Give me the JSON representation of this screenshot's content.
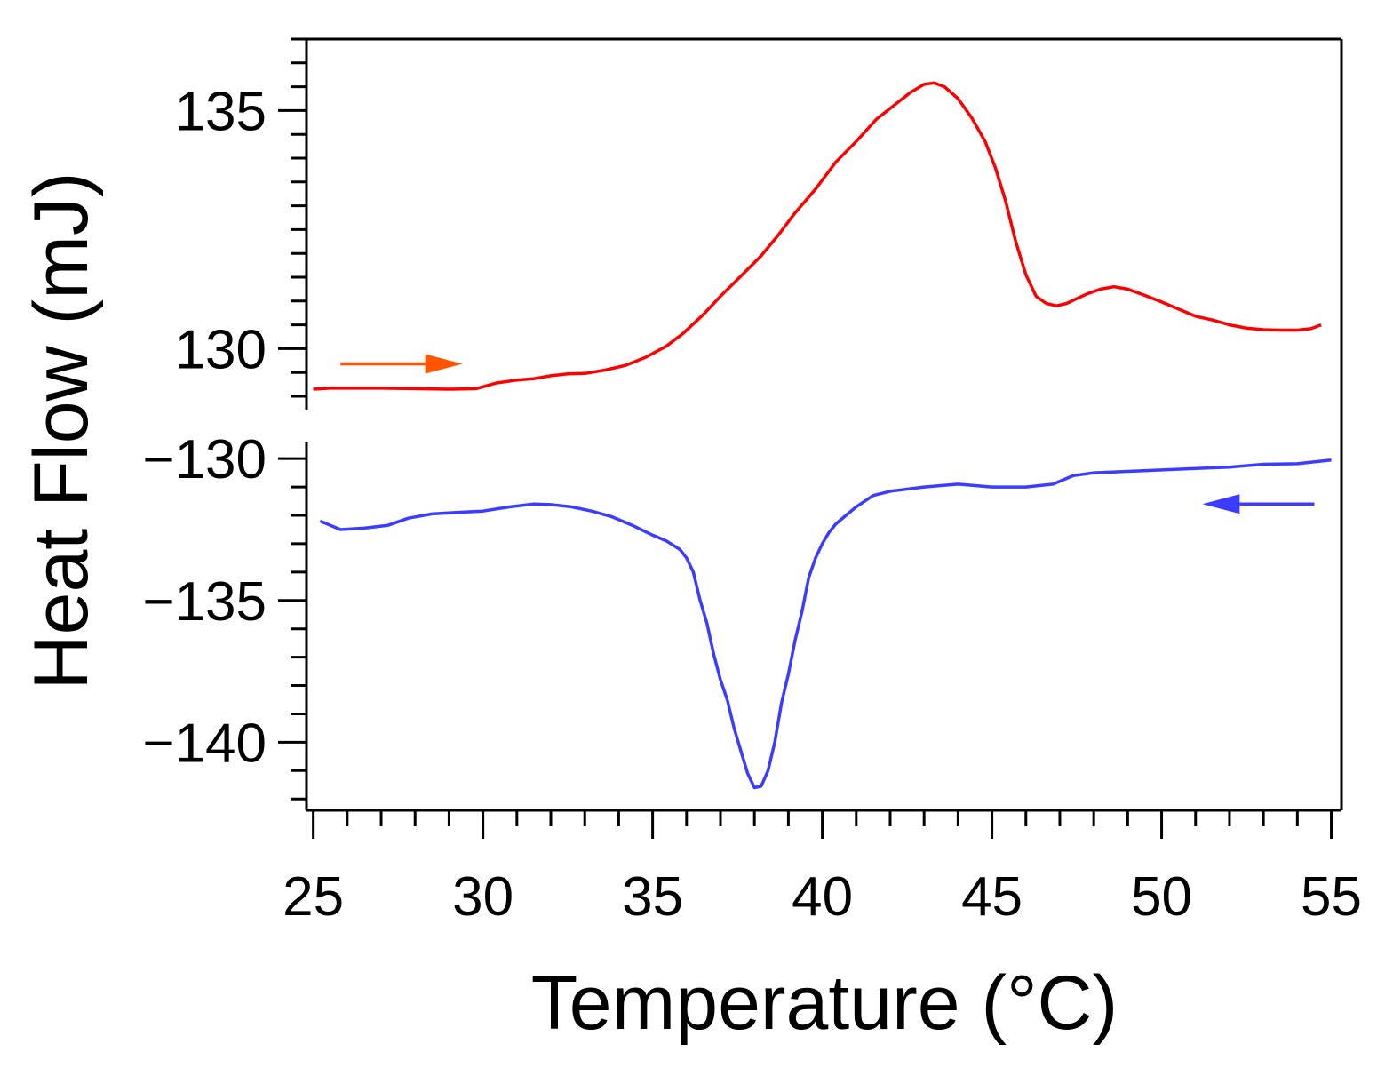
{
  "chart_data": {
    "type": "line",
    "title": "",
    "xlabel": "Temperature (°C)",
    "ylabel": "Heat Flow (mJ)",
    "xlim": [
      24.8,
      55.3
    ],
    "x_ticks": [
      25,
      30,
      35,
      40,
      45,
      50,
      55
    ],
    "x_tick_labels": [
      "25",
      "30",
      "35",
      "40",
      "45",
      "50",
      "55"
    ],
    "panels": [
      {
        "name": "heating",
        "ylim": [
          128.72,
          136.5
        ],
        "y_ticks": [
          130,
          135
        ],
        "y_tick_labels": [
          "130",
          "135"
        ],
        "y_minor_step": 0.5,
        "arrow": {
          "direction": "right",
          "color": "#ff5500",
          "x_from": 25.8,
          "x_to": 29.4,
          "y": 129.68
        },
        "series": {
          "name": "heating",
          "color": "#ff0000",
          "x": [
            25.0,
            25.5,
            26.0,
            27.0,
            28.0,
            29.0,
            29.8,
            30.4,
            31.0,
            31.5,
            32.0,
            32.5,
            33.0,
            33.6,
            34.2,
            34.8,
            35.4,
            35.9,
            36.5,
            37.0,
            37.6,
            38.2,
            38.7,
            39.2,
            39.8,
            40.4,
            41.0,
            41.6,
            42.1,
            42.6,
            43.0,
            43.3,
            43.6,
            44.0,
            44.4,
            44.8,
            45.1,
            45.4,
            45.7,
            46.0,
            46.3,
            46.6,
            46.9,
            47.2,
            47.5,
            47.8,
            48.2,
            48.6,
            49.0,
            49.5,
            50.0,
            50.5,
            51.0,
            51.5,
            52.0,
            52.5,
            53.0,
            53.5,
            54.0,
            54.4,
            54.7
          ],
          "y": [
            129.15,
            129.17,
            129.17,
            129.17,
            129.16,
            129.15,
            129.16,
            129.28,
            129.34,
            129.37,
            129.43,
            129.47,
            129.48,
            129.55,
            129.65,
            129.82,
            130.05,
            130.32,
            130.72,
            131.1,
            131.52,
            131.95,
            132.38,
            132.85,
            133.35,
            133.92,
            134.35,
            134.82,
            135.1,
            135.38,
            135.55,
            135.58,
            135.5,
            135.25,
            134.85,
            134.35,
            133.8,
            133.1,
            132.25,
            131.55,
            131.1,
            130.95,
            130.9,
            130.95,
            131.05,
            131.15,
            131.25,
            131.3,
            131.25,
            131.12,
            130.98,
            130.83,
            130.68,
            130.6,
            130.5,
            130.43,
            130.4,
            130.39,
            130.39,
            130.42,
            130.5
          ]
        }
      },
      {
        "name": "cooling",
        "ylim": [
          -142.4,
          -129.4
        ],
        "y_ticks": [
          -130,
          -135,
          -140
        ],
        "y_tick_labels": [
          "−130",
          "−135",
          "−140"
        ],
        "y_minor_step": 1,
        "arrow": {
          "direction": "left",
          "color": "#3c3cff",
          "x_from": 54.5,
          "x_to": 51.2,
          "y": -131.6
        },
        "series": {
          "name": "cooling",
          "color": "#3c3cff",
          "x": [
            25.2,
            25.8,
            26.5,
            27.2,
            27.8,
            28.5,
            29.2,
            30.0,
            30.8,
            31.5,
            32.0,
            32.6,
            33.2,
            33.8,
            34.4,
            35.0,
            35.4,
            35.8,
            36.0,
            36.2,
            36.4,
            36.6,
            36.8,
            37.0,
            37.2,
            37.4,
            37.6,
            37.8,
            38.0,
            38.2,
            38.4,
            38.6,
            38.8,
            39.0,
            39.2,
            39.4,
            39.6,
            39.8,
            40.0,
            40.2,
            40.4,
            40.7,
            41.0,
            41.5,
            42.0,
            43.0,
            44.0,
            45.0,
            46.0,
            46.8,
            47.4,
            48.0,
            49.0,
            50.0,
            51.0,
            52.0,
            53.0,
            54.0,
            55.0
          ],
          "y": [
            -132.2,
            -132.5,
            -132.45,
            -132.35,
            -132.1,
            -131.95,
            -131.9,
            -131.85,
            -131.7,
            -131.6,
            -131.62,
            -131.7,
            -131.85,
            -132.05,
            -132.35,
            -132.7,
            -132.9,
            -133.2,
            -133.5,
            -134.0,
            -135.0,
            -135.8,
            -136.9,
            -137.8,
            -138.5,
            -139.5,
            -140.3,
            -141.1,
            -141.6,
            -141.55,
            -141.0,
            -140.0,
            -138.6,
            -137.6,
            -136.4,
            -135.4,
            -134.2,
            -133.5,
            -133.0,
            -132.6,
            -132.3,
            -132.0,
            -131.7,
            -131.3,
            -131.15,
            -131.0,
            -130.9,
            -131.0,
            -131.0,
            -130.9,
            -130.6,
            -130.5,
            -130.45,
            -130.4,
            -130.35,
            -130.3,
            -130.2,
            -130.18,
            -130.05
          ]
        }
      }
    ]
  }
}
